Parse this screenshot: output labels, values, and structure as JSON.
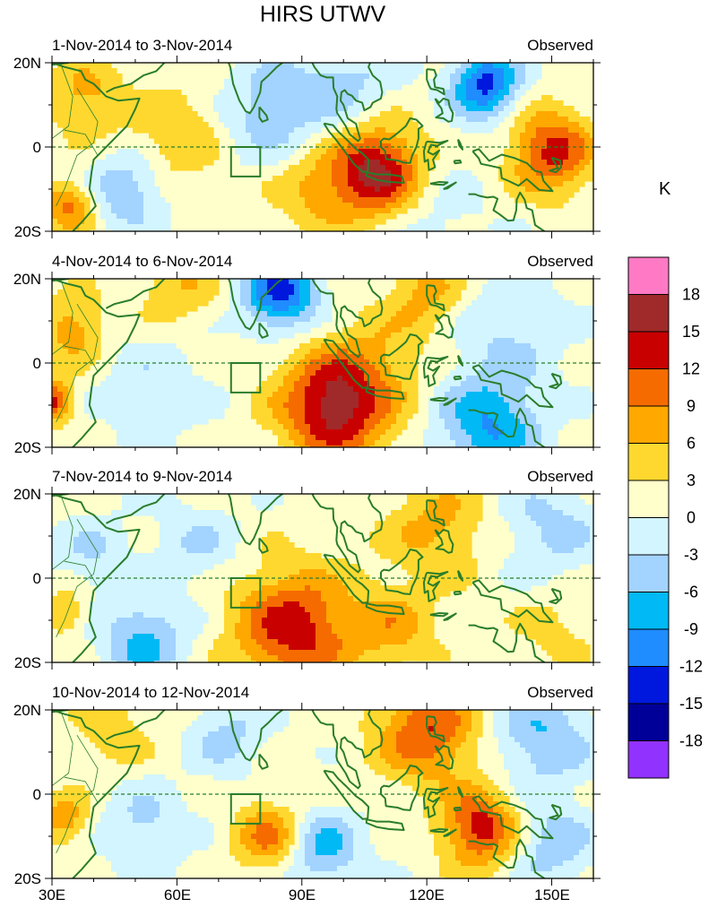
{
  "title": "HIRS UTWV",
  "unit": "K",
  "lat_labels": [
    "20N",
    "0",
    "20S"
  ],
  "lon_labels": [
    "30E",
    "60E",
    "90E",
    "120E",
    "150E"
  ],
  "panels": [
    {
      "date": "1-Nov-2014 to 3-Nov-2014",
      "source": "Observed",
      "blobs": [
        {
          "lon": 108,
          "lat": -6,
          "r": 11,
          "v": 16
        },
        {
          "lon": 150,
          "lat": -1,
          "r": 10,
          "v": 12
        },
        {
          "lon": 134,
          "lat": 15,
          "r": 8,
          "v": -14
        },
        {
          "lon": 82,
          "lat": 8,
          "r": 12,
          "v": -6
        },
        {
          "lon": 48,
          "lat": -10,
          "r": 9,
          "v": -7
        },
        {
          "lon": 38,
          "lat": 12,
          "r": 9,
          "v": 6
        },
        {
          "lon": 60,
          "lat": 3,
          "r": 12,
          "v": 5
        },
        {
          "lon": 100,
          "lat": 15,
          "r": 12,
          "v": -5
        },
        {
          "lon": 120,
          "lat": -16,
          "r": 14,
          "v": -3
        },
        {
          "lon": 34,
          "lat": -14,
          "r": 6,
          "v": 9
        },
        {
          "lon": 92,
          "lat": -10,
          "r": 10,
          "v": 5
        }
      ]
    },
    {
      "date": "4-Nov-2014 to 6-Nov-2014",
      "source": "Observed",
      "blobs": [
        {
          "lon": 98,
          "lat": -10,
          "r": 13,
          "v": 16
        },
        {
          "lon": 85,
          "lat": 17,
          "r": 9,
          "v": -14
        },
        {
          "lon": 135,
          "lat": -15,
          "r": 12,
          "v": -10
        },
        {
          "lon": 120,
          "lat": 17,
          "r": 9,
          "v": 6
        },
        {
          "lon": 60,
          "lat": 18,
          "r": 10,
          "v": 5
        },
        {
          "lon": 35,
          "lat": 8,
          "r": 8,
          "v": 7
        },
        {
          "lon": 30,
          "lat": -9,
          "r": 5,
          "v": 12
        },
        {
          "lon": 140,
          "lat": 8,
          "r": 14,
          "v": -4
        },
        {
          "lon": 55,
          "lat": -5,
          "r": 14,
          "v": -3
        },
        {
          "lon": 110,
          "lat": 2,
          "r": 12,
          "v": 3
        }
      ]
    },
    {
      "date": "7-Nov-2014 to 9-Nov-2014",
      "source": "Observed",
      "blobs": [
        {
          "lon": 88,
          "lat": -12,
          "r": 14,
          "v": 13
        },
        {
          "lon": 112,
          "lat": -12,
          "r": 10,
          "v": 6
        },
        {
          "lon": 122,
          "lat": 12,
          "r": 12,
          "v": 6
        },
        {
          "lon": 52,
          "lat": -15,
          "r": 10,
          "v": -8
        },
        {
          "lon": 150,
          "lat": 12,
          "r": 12,
          "v": -5
        },
        {
          "lon": 40,
          "lat": 6,
          "r": 9,
          "v": -4
        },
        {
          "lon": 65,
          "lat": 8,
          "r": 10,
          "v": -4
        },
        {
          "lon": 33,
          "lat": -8,
          "r": 5,
          "v": 6
        },
        {
          "lon": 150,
          "lat": -12,
          "r": 10,
          "v": 3
        }
      ]
    },
    {
      "date": "10-Nov-2014 to 12-Nov-2014",
      "source": "Observed",
      "blobs": [
        {
          "lon": 120,
          "lat": 15,
          "r": 12,
          "v": 11
        },
        {
          "lon": 133,
          "lat": -8,
          "r": 9,
          "v": 13
        },
        {
          "lon": 82,
          "lat": -10,
          "r": 8,
          "v": 9
        },
        {
          "lon": 148,
          "lat": 14,
          "r": 12,
          "v": -7
        },
        {
          "lon": 95,
          "lat": -13,
          "r": 9,
          "v": -8
        },
        {
          "lon": 52,
          "lat": -8,
          "r": 10,
          "v": -5
        },
        {
          "lon": 33,
          "lat": -6,
          "r": 6,
          "v": 7
        },
        {
          "lon": 45,
          "lat": 15,
          "r": 9,
          "v": 4
        },
        {
          "lon": 150,
          "lat": -12,
          "r": 10,
          "v": -6
        },
        {
          "lon": 72,
          "lat": 14,
          "r": 9,
          "v": -5
        }
      ]
    }
  ],
  "colorbar": {
    "labels": [
      "18",
      "15",
      "12",
      "9",
      "6",
      "3",
      "0",
      "-3",
      "-6",
      "-9",
      "-12",
      "-15",
      "-18"
    ],
    "colors": [
      "#ff79c4",
      "#a02a2a",
      "#c80000",
      "#f56b00",
      "#ffa800",
      "#ffd82f",
      "#ffffcc",
      "#d2f5ff",
      "#a3d3ff",
      "#00b9f5",
      "#1f8cff",
      "#0018dd",
      "#000098",
      "#9232ff"
    ]
  }
}
